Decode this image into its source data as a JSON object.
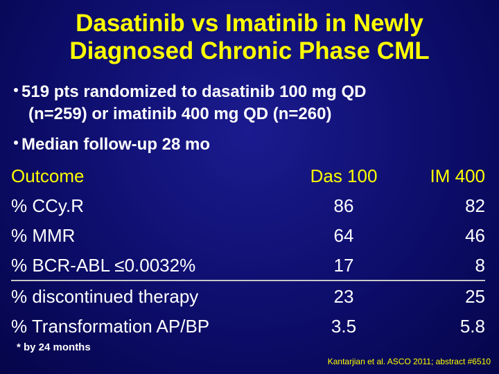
{
  "title_line1": "Dasatinib vs Imatinib in Newly",
  "title_line2": "Diagnosed Chronic Phase CML",
  "bullets": [
    {
      "line1": "519 pts randomized to dasatinib 100 mg QD",
      "line2": "(n=259) or imatinib 400 mg QD (n=260)"
    },
    {
      "line1": "Median follow-up 28 mo"
    }
  ],
  "table": {
    "headers": {
      "outcome": "Outcome",
      "das": "Das 100",
      "im": "IM 400"
    },
    "rows": [
      {
        "outcome": "% CCy.R",
        "das": "86",
        "im": "82"
      },
      {
        "outcome": "% MMR",
        "das": "64",
        "im": "46"
      },
      {
        "outcome": "% BCR-ABL ≤0.0032%",
        "das": "17",
        "im": "8"
      },
      {
        "outcome": "% discontinued therapy",
        "das": "23",
        "im": "25"
      },
      {
        "outcome": "% Transformation AP/BP",
        "das": "3.5",
        "im": "5.8"
      }
    ]
  },
  "footnote": "* by 24 months",
  "citation": "Kantarjian et al. ASCO 2011; abstract #6510",
  "colors": {
    "background": "#0d0d6b",
    "title": "#ffff00",
    "text": "#ffffff",
    "rule": "#c8c8c8"
  }
}
